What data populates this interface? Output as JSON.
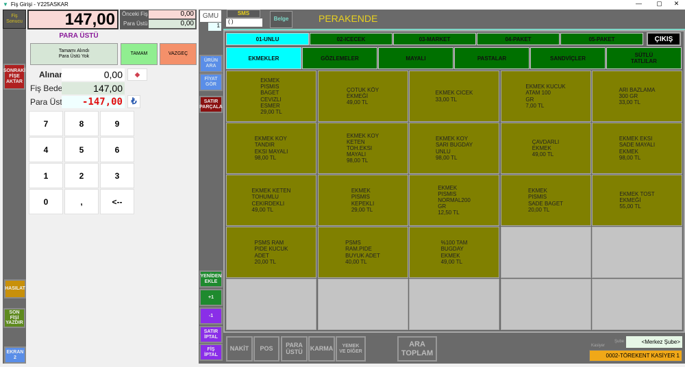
{
  "window": {
    "title": "Fiş Girişi - Y225ASKAR",
    "minimize": "—",
    "maximize": "▢",
    "close": "✕"
  },
  "left": {
    "fis_sonucu": "Fiş\nSonucu",
    "sonraki": "SONRAKİ\nFİŞE\nAKTAR",
    "hasilat": "HASILAT",
    "son_fisi": "SON\nFİŞİ\nYAZDIR",
    "ekran": "EKRAN\n2"
  },
  "total": "147,00",
  "onceki": {
    "label1": "Önceki Fiş",
    "value1": "0,00",
    "label2": "Para Üstü",
    "value2": "0,00"
  },
  "change": {
    "title": "PARA ÜSTÜ",
    "tamami": "Tamamı Alındı\nPara Üstü Yok",
    "tamam": "TAMAM",
    "vazgec": "VAZGEÇ",
    "alinan_label": "Alınan",
    "alinan": "0,00",
    "fis_bedeli_label": "Fiş Bedeli",
    "fis_bedeli": "147,00",
    "para_ustu_label": "Para Üstü",
    "para_ustu": "-147,00"
  },
  "keypad": [
    "7",
    "8",
    "9",
    "4",
    "5",
    "6",
    "1",
    "2",
    "3",
    "0",
    ",",
    "<--"
  ],
  "mid": {
    "gmu": "GMU",
    "qty": "1",
    "urun_ara": "ÜRÜN\nARA",
    "fiyat_gor": "FİYAT\nGÖR",
    "satir_parcala": "SATIR\nPARÇALA",
    "yeniden_ekle": "YENİDEN\nEKLE",
    "plus": "+1",
    "minus": "-1",
    "satir_iptal": "SATIR\nİPTAL",
    "fis_iptal": "FİŞ\nİPTAL"
  },
  "top": {
    "sms": "SMS",
    "sms_input": "(  )",
    "belge": "Belge",
    "mode": "PERAKENDE"
  },
  "categories": [
    "01-UNLU",
    "02-ICECEK",
    "03-MARKET",
    "04-PAKET",
    "05-PAKET"
  ],
  "exit": "ÇIKIŞ",
  "subcategories": [
    "EKMEKLER",
    "GÖZLEMELER",
    "MAYALI",
    "PASTALAR",
    "SANDVİÇLER",
    "SÜTLÜ\nTATLILAR"
  ],
  "products": [
    "EKMEK\nPISMIS\nBAGET\nCEVIZLI\nESMER\n29,00 TL",
    "ÇOTUK KÖY\nEKMEĞİ\n49,00 TL",
    "EKMEK CICEK\n33,00 TL",
    "EKMEK KUCUK\nATAM 100\nGR\n7,00 TL",
    "ARI BAZLAMA\n300 GR\n33,00 TL",
    "EKMEK KOY\nTANDIR\nEKSI MAYALI\n98,00 TL",
    "EKMEK KOY\nKETEN\nTOH.EKSI\nMAYALI\n98,00 TL",
    "EKMEK KOY\nSARI BUGDAY\nUNLU\n98,00 TL",
    "ÇAVDARLI\nEKMEK\n49,00 TL",
    "EKMEK EKSI\nSADE MAYALI\nEKMEK\n98,00 TL",
    "EKMEK KETEN\nTOHUMLU\nCEKIRDEKLI\n49,00 TL",
    "EKMEK\nPISMIS\nKEPEKLI\n29,00 TL",
    "EKMEK\nPISMIS\nNORMAL200\nGR\n12,50 TL",
    "EKMEK\nPISMIS\nSADE BAGET\n20,00 TL",
    "EKMEK TOST\nEKMEĞİ\n55,00 TL",
    "PSMS RAM\nPIDE KUCUK\nADET\n20,00 TL",
    "PSMS\nRAM.PIDE\nBUYUK ADET\n40,00 TL",
    "%100 TAM\nBUGDAY\nEKMEK\n49,00 TL",
    "",
    "",
    "",
    "",
    "",
    "",
    ""
  ],
  "payments": {
    "nakit": "NAKİT",
    "pos": "POS",
    "para_ustu": "PARA\nÜSTÜ",
    "karma": "KARMA",
    "yemek": "YEMEK\nVE DİĞER",
    "ara_toplam": "ARA\nTOPLAM"
  },
  "footer": {
    "kasiyer_label": "Kasiyer",
    "sube_label": "Şube",
    "sube": "<Merkez Şube>",
    "cashier": "0002-TÖREKENT KASİYER 1"
  },
  "colors": {
    "product": "#808000",
    "active_tab": "#00ffff",
    "tab": "#007000"
  }
}
